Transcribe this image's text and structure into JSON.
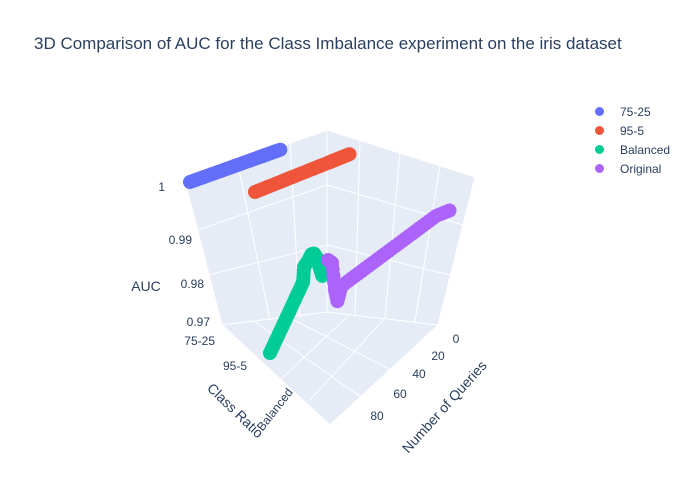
{
  "chart_data": {
    "type": "scatter3d",
    "title": "3D Comparison of AUC for the Class Imbalance experiment on the iris dataset",
    "axes": {
      "z": {
        "label": "AUC",
        "range": [
          0.97,
          1.0
        ],
        "ticks": [
          "1",
          "0.99",
          "0.98",
          "0.97"
        ]
      },
      "y": {
        "label": "Class Ratio",
        "categories": [
          "75-25",
          "95-5",
          "Balanced"
        ]
      },
      "x": {
        "label": "Number of Queries",
        "ticks": [
          "0",
          "20",
          "40",
          "60",
          "80"
        ]
      }
    },
    "legend_position": "top-right",
    "series": [
      {
        "name": "75-25",
        "color": "#636efa",
        "points": [
          [
            0,
            1.0
          ],
          [
            10,
            1.0
          ],
          [
            20,
            1.0
          ],
          [
            30,
            1.0
          ],
          [
            40,
            1.0
          ],
          [
            50,
            1.0
          ],
          [
            60,
            1.0
          ],
          [
            70,
            1.0
          ],
          [
            75,
            1.0
          ],
          [
            78,
            0.999
          ],
          [
            80,
            0.998
          ],
          [
            85,
            0.997
          ],
          [
            90,
            0.996
          ],
          [
            95,
            0.995
          ]
        ]
      },
      {
        "name": "95-5",
        "color": "#ef553b",
        "points": [
          [
            0,
            1.0
          ],
          [
            10,
            1.0
          ],
          [
            20,
            1.0
          ],
          [
            30,
            1.0
          ],
          [
            40,
            1.0
          ],
          [
            50,
            1.0
          ],
          [
            60,
            1.0
          ],
          [
            70,
            1.0
          ],
          [
            72,
            0.999
          ],
          [
            75,
            0.998
          ],
          [
            80,
            0.997
          ],
          [
            85,
            0.995
          ],
          [
            90,
            0.993
          ]
        ]
      },
      {
        "name": "Balanced",
        "color": "#00cc96",
        "points": [
          [
            0,
            0.975
          ],
          [
            10,
            0.977
          ],
          [
            20,
            0.979
          ],
          [
            30,
            0.981
          ],
          [
            40,
            0.983
          ],
          [
            50,
            0.985
          ],
          [
            60,
            0.987
          ],
          [
            62,
            0.99
          ],
          [
            70,
            0.991
          ],
          [
            75,
            0.992
          ],
          [
            80,
            0.992
          ],
          [
            85,
            0.991
          ],
          [
            90,
            0.989
          ],
          [
            95,
            0.987
          ]
        ]
      },
      {
        "name": "Original",
        "color": "#ab63fa",
        "points": [
          [
            0,
            1.0
          ],
          [
            3,
            0.999
          ],
          [
            5,
            0.993
          ],
          [
            7,
            0.99
          ],
          [
            10,
            0.993
          ],
          [
            20,
            0.994
          ],
          [
            30,
            0.995
          ],
          [
            40,
            0.996
          ],
          [
            50,
            0.997
          ],
          [
            60,
            0.998
          ],
          [
            70,
            0.999
          ],
          [
            80,
            1.0
          ],
          [
            90,
            1.0
          ]
        ]
      }
    ]
  }
}
